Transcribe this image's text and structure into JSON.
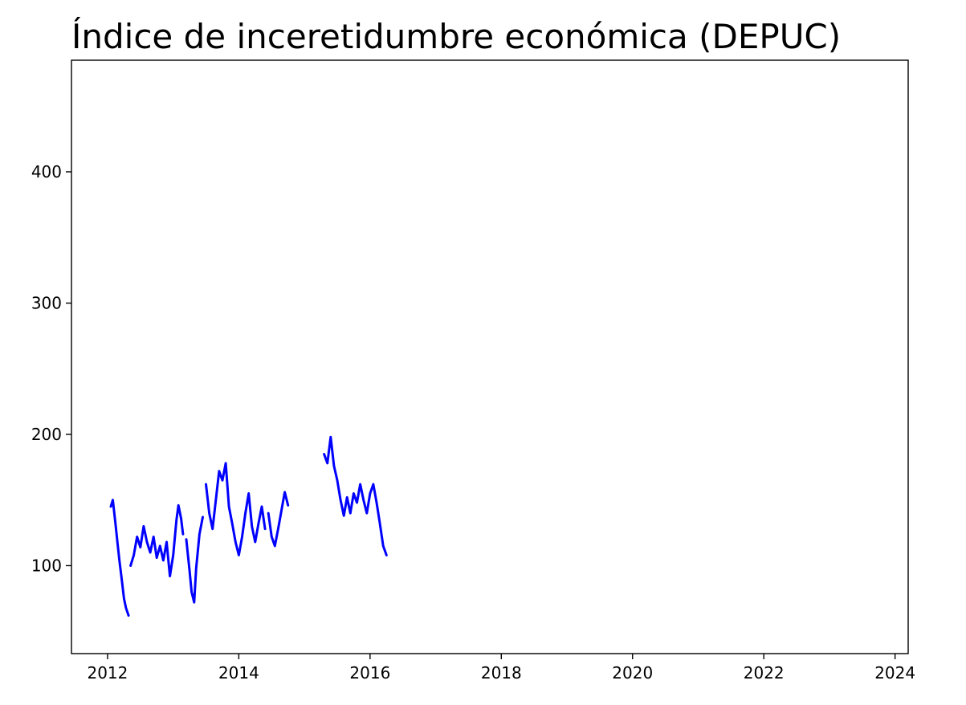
{
  "chart_data": {
    "type": "line",
    "title": "Índice de inceretidumbre económica (DEPUC)",
    "xlabel": "",
    "ylabel": "",
    "xlim": [
      2011.45,
      2024.2
    ],
    "ylim": [
      33,
      485
    ],
    "grid": false,
    "legend": "none",
    "xticks": [
      2012,
      2014,
      2016,
      2018,
      2020,
      2022,
      2024
    ],
    "yticks": [
      100,
      200,
      300,
      400
    ],
    "series": [
      {
        "color": "#0000ff",
        "segments": [
          [
            [
              2012.05,
              145
            ],
            [
              2012.08,
              150
            ],
            [
              2012.12,
              132
            ],
            [
              2012.15,
              118
            ],
            [
              2012.18,
              104
            ],
            [
              2012.22,
              88
            ],
            [
              2012.25,
              75
            ],
            [
              2012.28,
              68
            ],
            [
              2012.32,
              62
            ]
          ],
          [
            [
              2012.35,
              100
            ],
            [
              2012.4,
              108
            ],
            [
              2012.45,
              122
            ],
            [
              2012.5,
              114
            ],
            [
              2012.55,
              130
            ],
            [
              2012.6,
              118
            ],
            [
              2012.65,
              110
            ],
            [
              2012.7,
              122
            ],
            [
              2012.75,
              106
            ],
            [
              2012.8,
              115
            ],
            [
              2012.85,
              104
            ],
            [
              2012.9,
              118
            ],
            [
              2012.95,
              92
            ],
            [
              2013.0,
              108
            ],
            [
              2013.05,
              135
            ],
            [
              2013.08,
              146
            ],
            [
              2013.12,
              136
            ],
            [
              2013.15,
              124
            ]
          ],
          [
            [
              2013.2,
              120
            ],
            [
              2013.25,
              96
            ],
            [
              2013.28,
              80
            ],
            [
              2013.32,
              72
            ],
            [
              2013.35,
              98
            ],
            [
              2013.4,
              124
            ],
            [
              2013.45,
              137
            ]
          ],
          [
            [
              2013.5,
              162
            ],
            [
              2013.55,
              140
            ],
            [
              2013.6,
              128
            ],
            [
              2013.65,
              150
            ],
            [
              2013.7,
              172
            ],
            [
              2013.75,
              165
            ],
            [
              2013.8,
              178
            ],
            [
              2013.85,
              145
            ],
            [
              2013.9,
              132
            ],
            [
              2013.95,
              118
            ],
            [
              2014.0,
              108
            ],
            [
              2014.05,
              122
            ],
            [
              2014.1,
              140
            ],
            [
              2014.15,
              155
            ],
            [
              2014.2,
              130
            ],
            [
              2014.25,
              118
            ],
            [
              2014.3,
              132
            ],
            [
              2014.35,
              145
            ],
            [
              2014.4,
              128
            ]
          ],
          [
            [
              2014.45,
              140
            ],
            [
              2014.5,
              122
            ],
            [
              2014.55,
              115
            ],
            [
              2014.6,
              128
            ],
            [
              2014.65,
              142
            ],
            [
              2014.7,
              156
            ],
            [
              2014.75,
              146
            ]
          ],
          [
            [
              2015.3,
              185
            ],
            [
              2015.35,
              178
            ],
            [
              2015.4,
              198
            ],
            [
              2015.45,
              176
            ],
            [
              2015.5,
              165
            ],
            [
              2015.55,
              150
            ],
            [
              2015.6,
              138
            ],
            [
              2015.65,
              152
            ],
            [
              2015.7,
              140
            ],
            [
              2015.75,
              155
            ],
            [
              2015.8,
              148
            ],
            [
              2015.85,
              162
            ],
            [
              2015.9,
              150
            ],
            [
              2015.95,
              140
            ],
            [
              2016.0,
              155
            ],
            [
              2016.05,
              162
            ],
            [
              2016.1,
              148
            ],
            [
              2016.15,
              132
            ],
            [
              2016.2,
              115
            ],
            [
              2016.25,
              108
            ]
          ]
        ]
      }
    ]
  }
}
